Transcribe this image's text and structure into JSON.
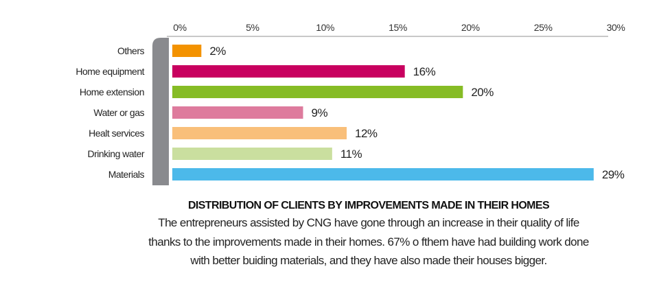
{
  "chart_data": {
    "type": "bar",
    "orientation": "horizontal",
    "categories": [
      "Others",
      "Home equipment",
      "Home extension",
      "Water or gas",
      "Healt services",
      "Drinking water",
      "Materials"
    ],
    "values": [
      2,
      16,
      20,
      9,
      12,
      11,
      29
    ],
    "value_labels": [
      "2%",
      "16%",
      "20%",
      "9%",
      "12%",
      "11%",
      "29%"
    ],
    "colors": [
      "#f39200",
      "#c8005f",
      "#86bc25",
      "#de7b9d",
      "#f9bf7a",
      "#cadf9f",
      "#4cb9ea"
    ],
    "xlim": [
      0,
      30
    ],
    "xticks": [
      0,
      5,
      10,
      15,
      20,
      25,
      30
    ],
    "xtick_labels": [
      "0%",
      "5%",
      "10%",
      "15%",
      "20%",
      "25%",
      "30%"
    ],
    "axis_position": "top",
    "grid": false,
    "title": "DISTRIBUTION OF CLIENTS BY IMPROVEMENTS MADE IN THEIR HOMES",
    "xlabel": "",
    "ylabel": ""
  },
  "caption": {
    "title": "DISTRIBUTION OF CLIENTS BY IMPROVEMENTS MADE IN THEIR HOMES",
    "lines": [
      "The entrepreneurs assisted by CNG have gone through an increase in their quality of life",
      "thanks to the improvements made in their homes. 67% o fthem have had building work done",
      "with better buiding materials, and they have also made their houses bigger."
    ]
  },
  "colors": {
    "axis": "#c8c8c8",
    "bracket": "#898a8e"
  }
}
